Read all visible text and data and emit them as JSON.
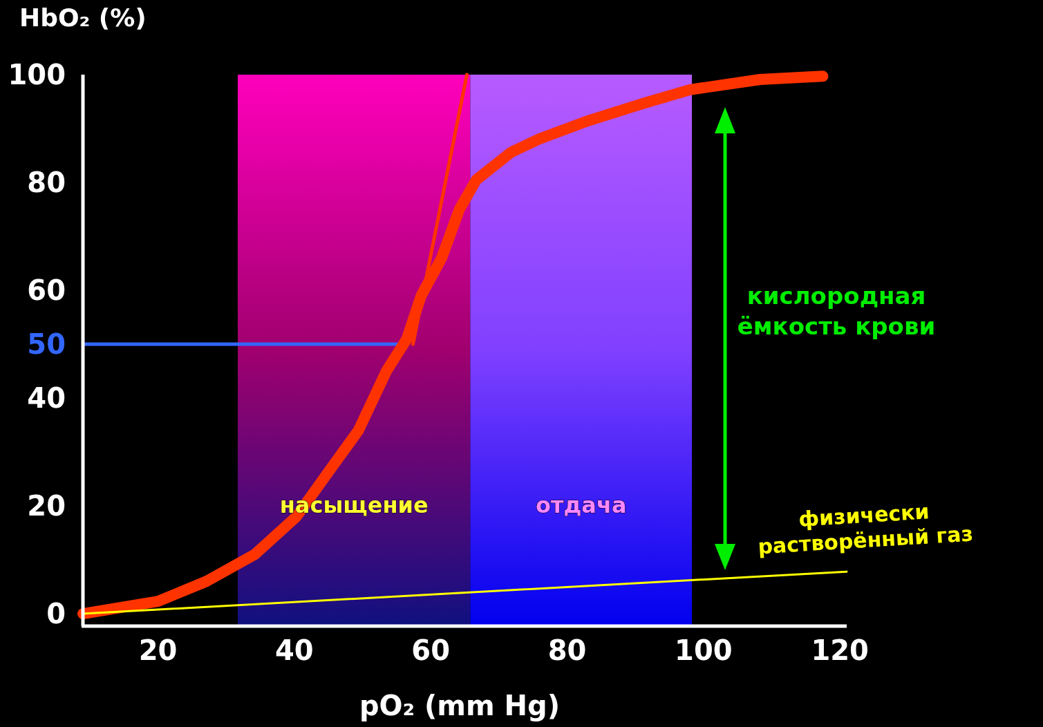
{
  "chart_data": {
    "type": "line",
    "xlabel": "pO₂ (mm Hg)",
    "ylabel": "HbO₂ (%)",
    "xlim": [
      9,
      121
    ],
    "xticks": [
      20,
      40,
      60,
      80,
      100,
      120
    ],
    "ylim": [
      -2.3,
      100
    ],
    "yticks": [
      0,
      20,
      40,
      60,
      80,
      100
    ],
    "line_style": "solid",
    "series": [
      {
        "color": "#ff3300",
        "x": [
          9,
          20,
          27.1,
          34.2,
          40.3,
          45.4,
          49.4,
          53.5,
          56.5,
          58.6,
          61.6,
          64.2,
          66.7,
          71.8,
          75.8,
          83,
          91,
          98,
          108.3,
          117.5
        ],
        "values": [
          0,
          2.3,
          6,
          11,
          18,
          27,
          34,
          45,
          51,
          59,
          66,
          75,
          80.5,
          85.6,
          88,
          91.4,
          94.6,
          97.2,
          99.1,
          99.7
        ]
      },
      {
        "color": "#ff3300",
        "x": [
          57.4,
          65.3
        ],
        "values": [
          50,
          100
        ]
      },
      {
        "color": "#ffff00",
        "x": [
          9,
          121
        ],
        "values": [
          0,
          7.8
        ]
      }
    ],
    "ref_lines": [
      {
        "axis": "y",
        "value": 50,
        "label": "50",
        "color": "#3366ff"
      }
    ],
    "bands": [
      {
        "axis": "x",
        "from": 31.7,
        "to": 65.8,
        "label": "насыщение",
        "color": "#a0006e"
      },
      {
        "axis": "x",
        "from": 65.8,
        "to": 98.3,
        "label": "отдача",
        "color": "#8040ff"
      }
    ],
    "annotations": [
      "кислородная ёмкость крови",
      "физически растворённый газ"
    ]
  }
}
